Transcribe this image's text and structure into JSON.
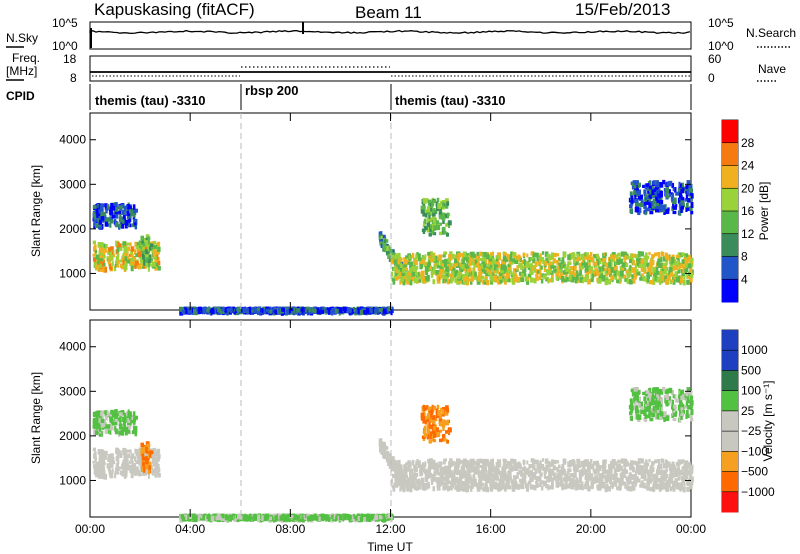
{
  "header": {
    "station": "Kapuskasing (fitACF)",
    "beam": "Beam 11",
    "date": "15/Feb/2013"
  },
  "noise_panel": {
    "left_label": "N.Sky",
    "right_label": "N.Search",
    "left_ticks": [
      "10^5",
      "10^0"
    ],
    "right_ticks": [
      "10^5",
      "10^0"
    ]
  },
  "freq_panel": {
    "left_label_1": "Freq.",
    "left_label_2": "[MHz]",
    "right_label": "Nave",
    "left_ticks": [
      "18",
      "8"
    ],
    "right_ticks": [
      "60",
      "0"
    ]
  },
  "cpid": {
    "label": "CPID",
    "segments": [
      {
        "start_h": 0,
        "end_h": 6,
        "name": "themis (tau) -3310"
      },
      {
        "start_h": 6,
        "end_h": 12,
        "name": "rbsp 200"
      },
      {
        "start_h": 12,
        "end_h": 24,
        "name": "themis (tau) -3310"
      }
    ]
  },
  "x_axis": {
    "label": "Time UT",
    "ticks": [
      "00:00",
      "04:00",
      "08:00",
      "12:00",
      "16:00",
      "20:00",
      "00:00"
    ],
    "range_h": [
      0,
      24
    ]
  },
  "power_panel": {
    "ylabel": "Slant Range [km]",
    "yticks": [
      "1000",
      "2000",
      "3000",
      "4000"
    ],
    "colorbar_label": "Power [dB]",
    "colorbar_ticks": [
      "4",
      "8",
      "12",
      "16",
      "20",
      "24",
      "28"
    ]
  },
  "velocity_panel": {
    "ylabel": "Slant Range [km]",
    "yticks": [
      "1000",
      "2000",
      "3000",
      "4000"
    ],
    "colorbar_label": "Velocity [m s⁻¹]",
    "colorbar_ticks": [
      "1000",
      "500",
      "100",
      "25",
      "−25",
      "−100",
      "−500",
      "−1000"
    ]
  },
  "chart_data": {
    "type": "heatmap",
    "x_unit": "hours UT",
    "y_unit": "km",
    "ylim": [
      180,
      4600
    ],
    "xlim": [
      0,
      24
    ],
    "cpid_boundaries_h": [
      6,
      12
    ],
    "power_scale": [
      {
        "db": 2,
        "color": "#0000ff"
      },
      {
        "db": 6,
        "color": "#2255c8"
      },
      {
        "db": 10,
        "color": "#3a8c5a"
      },
      {
        "db": 14,
        "color": "#5ab84a"
      },
      {
        "db": 18,
        "color": "#9ad23a"
      },
      {
        "db": 22,
        "color": "#f0b020"
      },
      {
        "db": 26,
        "color": "#f57a10"
      },
      {
        "db": 30,
        "color": "#ff0000"
      }
    ],
    "velocity_scale": [
      {
        "v": 1000,
        "color": "#1e3fbf"
      },
      {
        "v": 500,
        "color": "#2f7a4a"
      },
      {
        "v": 100,
        "color": "#52c040"
      },
      {
        "v": 0,
        "color": "#c8c8c0"
      },
      {
        "v": -100,
        "color": "#f5a020"
      },
      {
        "v": -500,
        "color": "#ff6a00"
      },
      {
        "v": -1000,
        "color": "#ff1010"
      }
    ],
    "echo_regions": [
      {
        "name": "morning-band-main",
        "t0": 0.1,
        "t1": 2.7,
        "r0": 1150,
        "r1": 1750,
        "power_db": 20,
        "velocity": 0
      },
      {
        "name": "morning-band-upper",
        "t0": 0.1,
        "t1": 1.8,
        "r0": 2100,
        "r1": 2600,
        "power_db": 6,
        "velocity": 100
      },
      {
        "name": "morning-patch",
        "t0": 2.0,
        "t1": 2.4,
        "r0": 1200,
        "r1": 1900,
        "power_db": 14,
        "velocity": -300
      },
      {
        "name": "evening-arc",
        "t0": 11.5,
        "t1": 12.5,
        "r0": 1000,
        "r1": 1900,
        "power_db": 12,
        "velocity": 0
      },
      {
        "name": "evening-band-main",
        "t0": 12.0,
        "t1": 24.0,
        "r0": 850,
        "r1": 1500,
        "power_db": 18,
        "velocity": 0
      },
      {
        "name": "evening-patch-2500",
        "t0": 13.2,
        "t1": 14.3,
        "r0": 1900,
        "r1": 2700,
        "power_db": 14,
        "velocity": -300
      },
      {
        "name": "late-upper-band",
        "t0": 21.5,
        "t1": 24.0,
        "r0": 2400,
        "r1": 3100,
        "power_db": 6,
        "velocity": 100
      },
      {
        "name": "ground-scatter-near",
        "t0": 3.5,
        "t1": 12.0,
        "r0": 180,
        "r1": 260,
        "power_db": 6,
        "velocity": 100
      }
    ]
  }
}
